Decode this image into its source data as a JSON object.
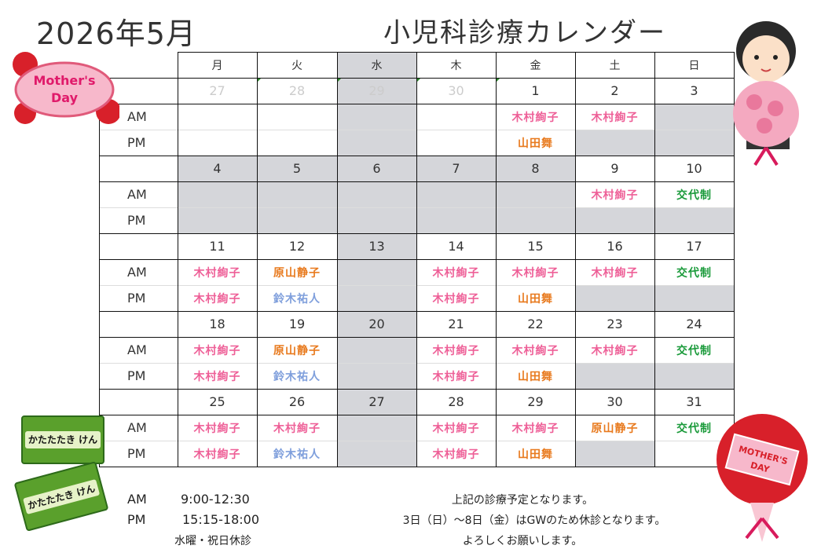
{
  "title": {
    "month": "2026年5月",
    "name": "小児科診療カレンダー"
  },
  "weekdays": [
    "月",
    "火",
    "水",
    "木",
    "金",
    "土",
    "日"
  ],
  "session_labels": {
    "am": "AM",
    "pm": "PM"
  },
  "colors": {
    "木村絢子": "#ee5f97",
    "原山静子": "#e87a1e",
    "山田舞": "#e87a1e",
    "鈴木祐人": "#7f9fdc",
    "交代制": "#1a9a3a",
    "gray": "#d5d6da"
  },
  "weeks": [
    {
      "dates": [
        "27",
        "28",
        "29",
        "30",
        "1",
        "2",
        "3"
      ],
      "muted": [
        true,
        true,
        true,
        true,
        false,
        false,
        false
      ],
      "date_gray": [
        false,
        false,
        true,
        false,
        false,
        false,
        false
      ],
      "am": [
        "",
        "",
        null,
        "",
        "木村絢子",
        "木村絢子",
        null
      ],
      "pm": [
        "",
        "",
        null,
        "",
        "山田舞",
        null,
        null
      ]
    },
    {
      "dates": [
        "4",
        "5",
        "6",
        "7",
        "8",
        "9",
        "10"
      ],
      "muted": [
        false,
        false,
        false,
        false,
        false,
        false,
        false
      ],
      "date_gray": [
        true,
        true,
        true,
        true,
        true,
        false,
        false
      ],
      "am": [
        null,
        null,
        null,
        null,
        null,
        "木村絢子",
        "交代制"
      ],
      "pm": [
        null,
        null,
        null,
        null,
        null,
        null,
        null
      ]
    },
    {
      "dates": [
        "11",
        "12",
        "13",
        "14",
        "15",
        "16",
        "17"
      ],
      "muted": [
        false,
        false,
        false,
        false,
        false,
        false,
        false
      ],
      "date_gray": [
        false,
        false,
        true,
        false,
        false,
        false,
        false
      ],
      "am": [
        "木村絢子",
        "原山静子",
        null,
        "木村絢子",
        "木村絢子",
        "木村絢子",
        "交代制"
      ],
      "pm": [
        "木村絢子",
        "鈴木祐人",
        null,
        "木村絢子",
        "山田舞",
        null,
        null
      ]
    },
    {
      "dates": [
        "18",
        "19",
        "20",
        "21",
        "22",
        "23",
        "24"
      ],
      "muted": [
        false,
        false,
        false,
        false,
        false,
        false,
        false
      ],
      "date_gray": [
        false,
        false,
        true,
        false,
        false,
        false,
        false
      ],
      "am": [
        "木村絢子",
        "原山静子",
        null,
        "木村絢子",
        "木村絢子",
        "木村絢子",
        "交代制"
      ],
      "pm": [
        "木村絢子",
        "鈴木祐人",
        null,
        "木村絢子",
        "山田舞",
        null,
        null
      ]
    },
    {
      "dates": [
        "25",
        "26",
        "27",
        "28",
        "29",
        "30",
        "31"
      ],
      "muted": [
        false,
        false,
        false,
        false,
        false,
        false,
        false
      ],
      "date_gray": [
        false,
        false,
        true,
        false,
        false,
        false,
        false
      ],
      "am": [
        "木村絢子",
        "木村絢子",
        null,
        "木村絢子",
        "木村絢子",
        "原山静子",
        "交代制"
      ],
      "pm": [
        "木村絢子",
        "鈴木祐人",
        null,
        "木村絢子",
        "山田舞",
        null,
        ""
      ]
    }
  ],
  "footer": {
    "am_label": "AM",
    "am_hours": "9:00-12:30",
    "pm_label": "PM",
    "pm_hours": "15:15-18:00",
    "closed": "水曜・祝日休診",
    "note1": "上記の診療予定となります。",
    "note2": "3日（日）～8日（金）はGWのため休診となります。",
    "note3": "よろしくお願いします。"
  },
  "decorations": {
    "mothers_day_1": "Mother's Day",
    "mothers_day_2": "MOTHER'S DAY",
    "ticket_1": "かたたたき けん",
    "ticket_2": "かたたたき けん"
  }
}
